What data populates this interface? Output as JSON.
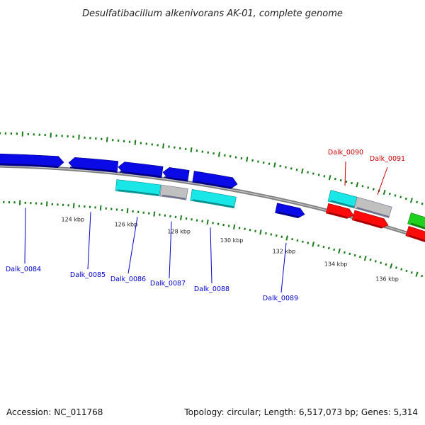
{
  "title": "Desulfatibacillum alkenivorans AK-01, complete genome",
  "footer": {
    "accession": "Accession: NC_011768",
    "summary": "Topology: circular; Length: 6,517,073 bp; Genes: 5,314"
  },
  "colors": {
    "backbone": "#808080",
    "tick": "#1a7a1a",
    "label_blue": "#0000cc",
    "label_red": "#cc0000",
    "gene_blue": "#0a0ae6",
    "gene_cyan": "#19e6e6",
    "gene_red": "#ff0a0a",
    "gene_gray": "#c0c0c0",
    "gene_green": "#1fd11f"
  },
  "scale": {
    "labels": [
      {
        "kbp": 124,
        "text": "124 kbp"
      },
      {
        "kbp": 126,
        "text": "126 kbp"
      },
      {
        "kbp": 128,
        "text": "128 kbp"
      },
      {
        "kbp": 130,
        "text": "130 kbp"
      },
      {
        "kbp": 132,
        "text": "132 kbp"
      },
      {
        "kbp": 134,
        "text": "134 kbp"
      },
      {
        "kbp": 136,
        "text": "136 kbp"
      }
    ]
  },
  "genes": [
    {
      "id": "Dalk_0084",
      "label": "Dalk_0084",
      "color": "blue",
      "strand": "+",
      "track": 1,
      "labeled": true
    },
    {
      "id": "Dalk_0085",
      "label": "Dalk_0085",
      "color": "blue",
      "strand": "-",
      "track": 1,
      "labeled": true
    },
    {
      "id": "Dalk_0086",
      "label": "Dalk_0086",
      "color": "blue",
      "strand": "-",
      "track": 1,
      "labeled": true
    },
    {
      "id": "Dalk_0087",
      "label": "Dalk_0087",
      "color": "blue",
      "strand": "-",
      "track": 1,
      "labeled": true
    },
    {
      "id": "Dalk_0088",
      "label": "Dalk_0088",
      "color": "blue",
      "strand": "+",
      "track": 1,
      "labeled": true
    },
    {
      "id": "Dalk_0089",
      "label": "Dalk_0089",
      "color": "blue",
      "strand": "+",
      "track": 2,
      "labeled": true
    },
    {
      "id": "Dalk_0086_cds",
      "label": "",
      "color": "cyan",
      "strand": "+",
      "track": 2,
      "labeled": false
    },
    {
      "id": "Dalk_0087_cds",
      "label": "",
      "color": "gray",
      "strand": "+",
      "track": 2,
      "labeled": false
    },
    {
      "id": "Dalk_0088_cds",
      "label": "",
      "color": "cyan",
      "strand": "+",
      "track": 2,
      "labeled": false
    },
    {
      "id": "Dalk_0090",
      "label": "Dalk_0090",
      "color": "cyan",
      "strand": "+",
      "track": 1,
      "labeled": true
    },
    {
      "id": "Dalk_0091",
      "label": "Dalk_0091",
      "color": "gray",
      "strand": "+",
      "track": 1,
      "labeled": true
    },
    {
      "id": "Dalk_0090_cds",
      "label": "",
      "color": "red",
      "strand": "+",
      "track": 2,
      "labeled": false
    },
    {
      "id": "Dalk_0091_cds",
      "label": "",
      "color": "red",
      "strand": "+",
      "track": 2,
      "labeled": false
    },
    {
      "id": "Dalk_0092_cds",
      "label": "",
      "color": "green",
      "strand": "+",
      "track": 1,
      "labeled": false
    },
    {
      "id": "Dalk_0092_cds2",
      "label": "",
      "color": "red",
      "strand": "+",
      "track": 2,
      "labeled": false
    }
  ]
}
